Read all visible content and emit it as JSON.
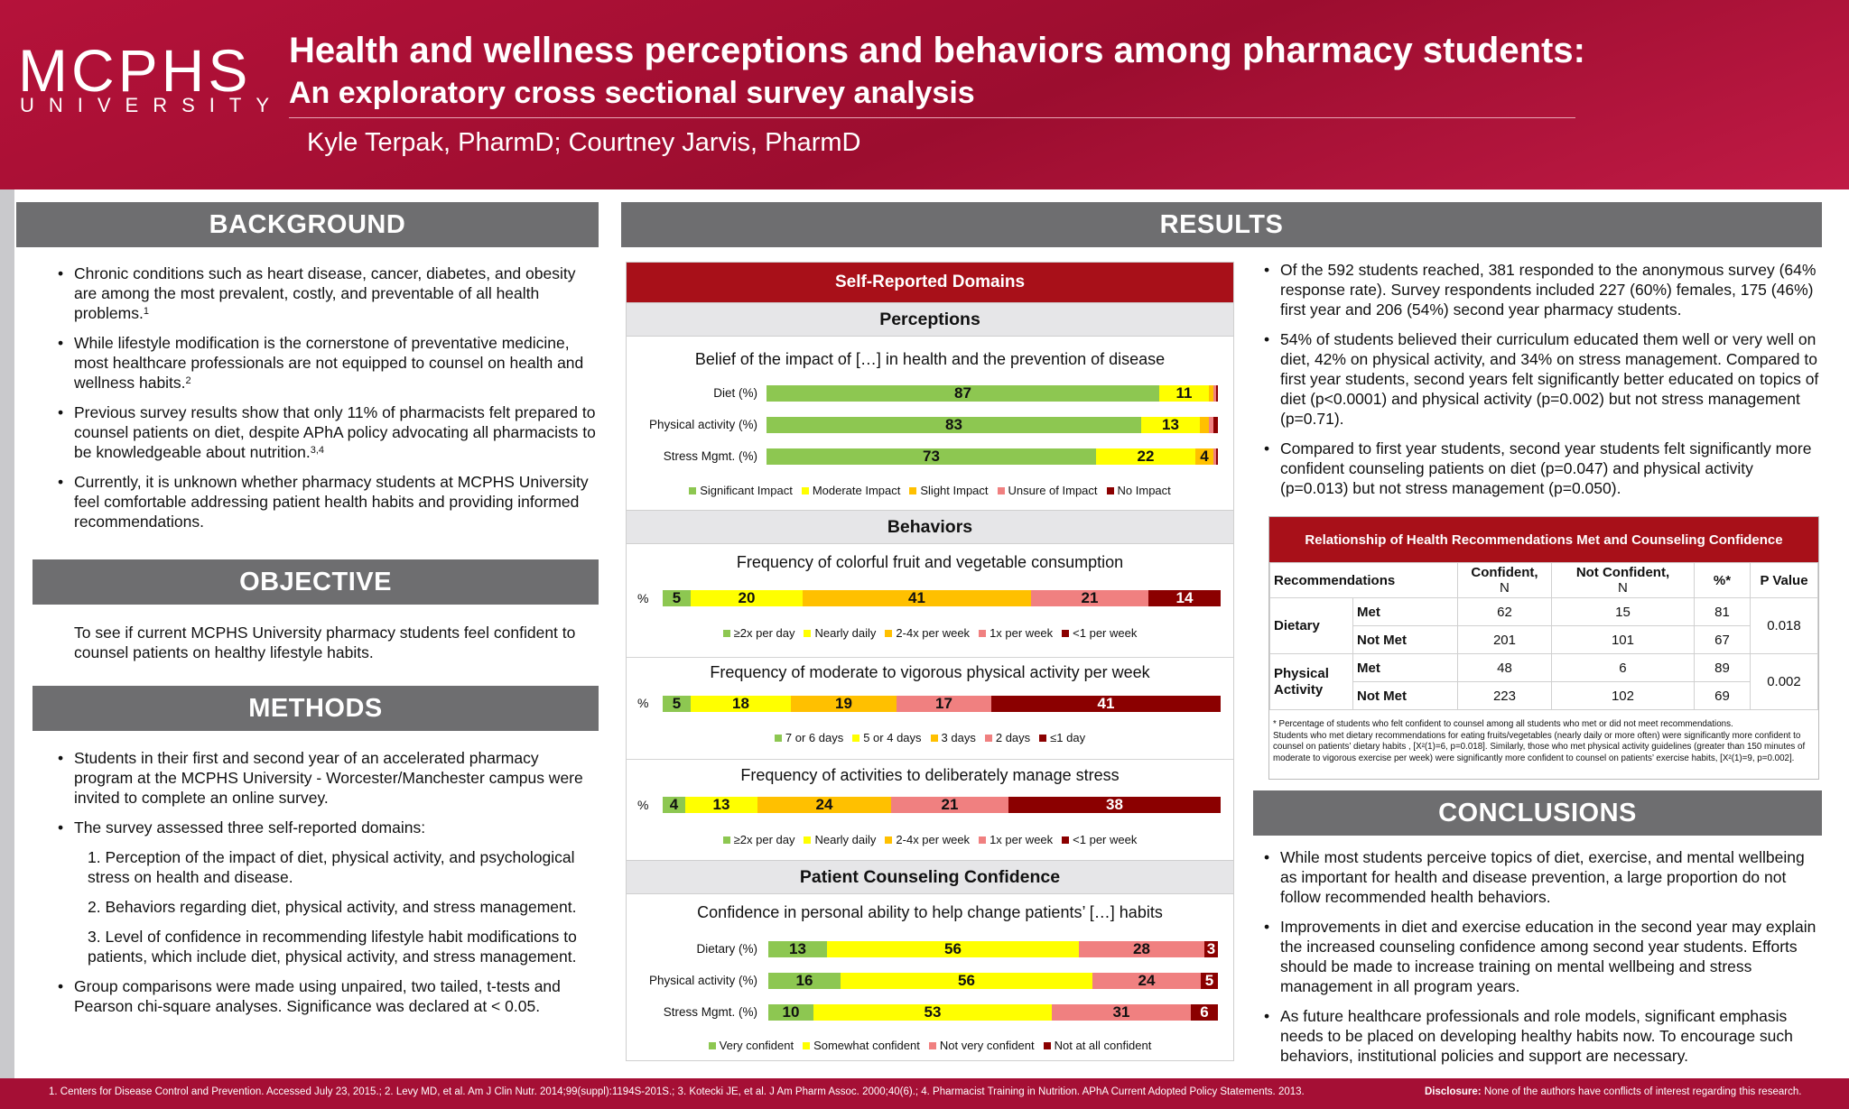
{
  "header": {
    "logo_main": "MCPHS",
    "logo_sub": "UNIVERSITY",
    "title_line1": "Health and wellness perceptions and behaviors among pharmacy students:",
    "title_line2": "An exploratory cross sectional survey analysis",
    "authors": "Kyle Terpak, PharmD; Courtney Jarvis, PharmD"
  },
  "background": {
    "heading": "BACKGROUND",
    "bullets": [
      "Chronic conditions such as heart disease, cancer, diabetes, and obesity are among the most prevalent, costly, and preventable of all health problems.",
      "While lifestyle modification is the cornerstone of preventative medicine, most healthcare professionals are not equipped to counsel on health and wellness habits.",
      "Previous survey results show that only 11% of pharmacists felt prepared to counsel patients on diet, despite APhA policy advocating all pharmacists to be knowledgeable about nutrition.",
      "Currently, it is unknown whether pharmacy students at MCPHS University feel comfortable addressing patient health habits and providing informed recommendations."
    ],
    "refs": [
      "1",
      "2",
      "3,4",
      ""
    ]
  },
  "objective": {
    "heading": "OBJECTIVE",
    "text": "To see if current MCPHS University pharmacy students feel confident to counsel patients on healthy lifestyle habits."
  },
  "methods": {
    "heading": "METHODS",
    "bullet1": "Students in their first and second year of an accelerated pharmacy program at the MCPHS University - Worcester/Manchester campus were invited to complete an online survey.",
    "bullet2": "The survey assessed three self-reported domains:",
    "sub1": "1. Perception of the impact of diet, physical activity, and psychological stress on health and disease.",
    "sub2": "2. Behaviors regarding diet, physical activity, and stress management.",
    "sub3": "3. Level of confidence in recommending lifestyle habit modifications to patients, which include diet, physical activity, and stress management.",
    "bullet3": "Group comparisons were made using unpaired, two tailed, t-tests and Pearson chi-square analyses. Significance was declared at < 0.05."
  },
  "results": {
    "heading": "RESULTS",
    "panel_title": "Self-Reported Domains",
    "perceptions_heading": "Perceptions",
    "behaviors_heading": "Behaviors",
    "counseling_heading": "Patient Counseling Confidence",
    "bullets": [
      "Of the 592 students reached, 381 responded to the anonymous survey (64% response rate). Survey respondents included 227 (60%) females, 175 (46%) first year and 206 (54%) second year pharmacy students.",
      "54% of students believed their curriculum educated them well or very well on diet, 42% on physical activity, and 34% on stress management. Compared to first year students, second years felt significantly better educated on topics of diet (p<0.0001) and physical activity (p=0.002) but not stress management (p=0.71).",
      "Compared to first year students, second year students felt significantly more confident counseling patients on diet (p=0.047) and physical activity (p=0.013) but not stress management (p=0.050)."
    ]
  },
  "colors": {
    "red": "#a81019",
    "gray_header": "#6e6e70",
    "green": "#8dc751",
    "yellow": "#ffff00",
    "orange": "#ffc000",
    "pink": "#f08080",
    "maroon": "#8b0000"
  },
  "chart_data": [
    {
      "type": "bar",
      "title": "Belief of the impact of […] in health and the prevention of disease",
      "categories": [
        "Diet (%)",
        "Physical activity (%)",
        "Stress Mgmt. (%)"
      ],
      "series": [
        {
          "name": "Significant Impact",
          "color": "#8dc751",
          "values": [
            87,
            83,
            73
          ]
        },
        {
          "name": "Moderate Impact",
          "color": "#ffff00",
          "values": [
            11,
            13,
            22
          ]
        },
        {
          "name": "Slight Impact",
          "color": "#ffc000",
          "values": [
            1,
            2,
            4
          ]
        },
        {
          "name": "Unsure of Impact",
          "color": "#f08080",
          "values": [
            0.5,
            1,
            0.5
          ]
        },
        {
          "name": "No Impact",
          "color": "#8b0000",
          "values": [
            0.5,
            1,
            0.5
          ]
        }
      ],
      "xlim": [
        0,
        100
      ]
    },
    {
      "type": "bar",
      "title": "Frequency of colorful fruit and vegetable consumption",
      "categories": [
        "%"
      ],
      "series": [
        {
          "name": "≥2x per day",
          "color": "#8dc751",
          "values": [
            5
          ]
        },
        {
          "name": "Nearly daily",
          "color": "#ffff00",
          "values": [
            20
          ]
        },
        {
          "name": "2-4x per week",
          "color": "#ffc000",
          "values": [
            41
          ]
        },
        {
          "name": "1x per week",
          "color": "#f08080",
          "values": [
            21
          ]
        },
        {
          "name": "<1 per week",
          "color": "#8b0000",
          "values": [
            14
          ]
        }
      ],
      "xlim": [
        0,
        100
      ]
    },
    {
      "type": "bar",
      "title": "Frequency of moderate to vigorous physical activity per week",
      "categories": [
        "%"
      ],
      "series": [
        {
          "name": "7 or 6 days",
          "color": "#8dc751",
          "values": [
            5
          ]
        },
        {
          "name": "5 or 4 days",
          "color": "#ffff00",
          "values": [
            18
          ]
        },
        {
          "name": "3 days",
          "color": "#ffc000",
          "values": [
            19
          ]
        },
        {
          "name": "2 days",
          "color": "#f08080",
          "values": [
            17
          ]
        },
        {
          "name": "≤1 day",
          "color": "#8b0000",
          "values": [
            41
          ]
        }
      ],
      "xlim": [
        0,
        100
      ]
    },
    {
      "type": "bar",
      "title": "Frequency of activities to deliberately manage stress",
      "categories": [
        "%"
      ],
      "series": [
        {
          "name": "≥2x per day",
          "color": "#8dc751",
          "values": [
            4
          ]
        },
        {
          "name": "Nearly daily",
          "color": "#ffff00",
          "values": [
            13
          ]
        },
        {
          "name": "2-4x per week",
          "color": "#ffc000",
          "values": [
            24
          ]
        },
        {
          "name": "1x per week",
          "color": "#f08080",
          "values": [
            21
          ]
        },
        {
          "name": "<1 per week",
          "color": "#8b0000",
          "values": [
            38
          ]
        }
      ],
      "xlim": [
        0,
        100
      ]
    },
    {
      "type": "bar",
      "title": "Confidence in personal ability to help change patients’ […] habits",
      "categories": [
        "Dietary (%)",
        "Physical activity (%)",
        "Stress Mgmt. (%)"
      ],
      "series": [
        {
          "name": "Very confident",
          "color": "#8dc751",
          "values": [
            13,
            16,
            10
          ]
        },
        {
          "name": "Somewhat confident",
          "color": "#ffff00",
          "values": [
            56,
            56,
            53
          ]
        },
        {
          "name": "Not very confident",
          "color": "#f08080",
          "values": [
            28,
            24,
            31
          ]
        },
        {
          "name": "Not at all confident",
          "color": "#8b0000",
          "values": [
            3,
            5,
            6
          ]
        }
      ],
      "xlim": [
        0,
        100
      ]
    },
    {
      "type": "table",
      "title": "Relationship of Health Recommendations Met and Counseling Confidence",
      "columns": [
        "Recommendations",
        "",
        "Confident, N",
        "Not Confident, N",
        "%*",
        "P Value"
      ],
      "rows": [
        [
          "Dietary",
          "Met",
          "62",
          "15",
          "81",
          "0.018"
        ],
        [
          "Dietary",
          "Not Met",
          "201",
          "101",
          "67",
          "0.018"
        ],
        [
          "Physical Activity",
          "Met",
          "48",
          "6",
          "89",
          "0.002"
        ],
        [
          "Physical Activity",
          "Not Met",
          "223",
          "102",
          "69",
          "0.002"
        ]
      ],
      "footnote": "* Percentage of students who felt confident to counsel among all students who met or did not meet recommendations.",
      "note": "Students who met dietary recommendations for eating fruits/vegetables (nearly daily or more often) were significantly more confident to counsel on patients’ dietary habits , [X²(1)=6, p=0.018]. Similarly, those who met physical activity guidelines (greater than 150 minutes of moderate to vigorous exercise per week) were significantly more confident to counsel on patients’ exercise habits, [X²(1)=9, p=0.002]."
    }
  ],
  "table": {
    "title": "Relationship of Health Recommendations Met and Counseling Confidence",
    "h_recommendations": "Recommendations",
    "h_confident": "Confident,",
    "h_not_confident": "Not Confident,",
    "h_n": "N",
    "h_pct": "%*",
    "h_p": "P Value",
    "dietary": "Dietary",
    "physical": "Physical Activity",
    "met": "Met",
    "not_met": "Not Met"
  },
  "conclusions": {
    "heading": "CONCLUSIONS",
    "bullets": [
      "While most students perceive topics of diet, exercise, and mental wellbeing as important for health and disease prevention, a large proportion do not follow recommended health behaviors.",
      "Improvements in diet and exercise education in the second year may explain the increased counseling confidence among second year students. Efforts should be made to increase training on mental wellbeing and stress management in all program years.",
      "As future healthcare professionals and role models, significant emphasis needs to be placed on developing healthy habits now. To encourage such behaviors, institutional policies and support are necessary."
    ]
  },
  "footer": {
    "references": "1. Centers for Disease Control and Prevention. Accessed July 23, 2015.; 2. Levy MD, et al. Am J Clin Nutr. 2014;99(suppl):1194S-201S.; 3. Kotecki JE, et al. J Am Pharm Assoc. 2000;40(6).; 4. Pharmacist Training in Nutrition. APhA Current Adopted Policy Statements. 2013.",
    "disclosure_label": "Disclosure:",
    "disclosure_text": " None of the authors have conflicts of interest regarding this research."
  }
}
